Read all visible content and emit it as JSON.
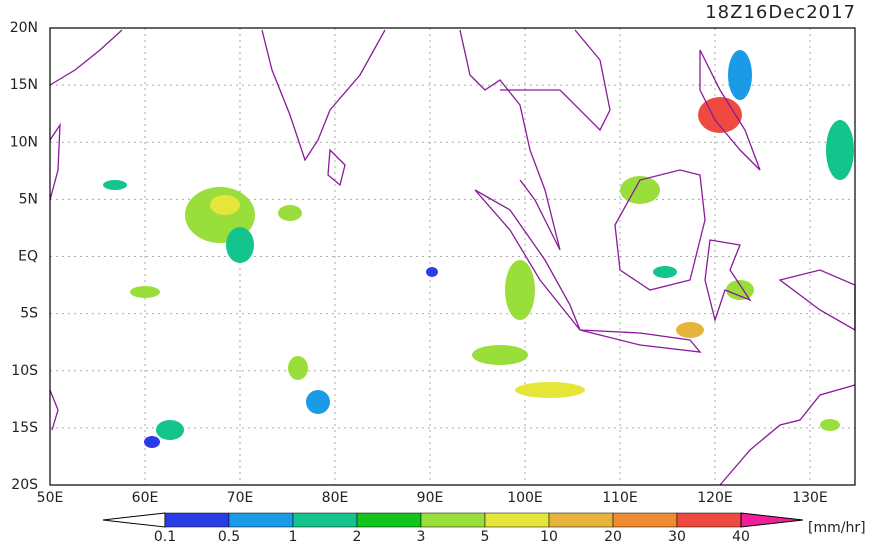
{
  "map": {
    "timestamp": "18Z16Dec2017",
    "lat_labels": [
      "20N",
      "15N",
      "10N",
      "5N",
      "EQ",
      "5S",
      "10S",
      "15S",
      "20S"
    ],
    "lon_labels": [
      "50E",
      "60E",
      "70E",
      "80E",
      "90E",
      "100E",
      "110E",
      "120E",
      "130E"
    ],
    "colorbar": {
      "labels": [
        "0.1",
        "0.5",
        "1",
        "2",
        "3",
        "5",
        "10",
        "20",
        "30",
        "40"
      ],
      "colors": [
        "#ffffff",
        "#2a3ce6",
        "#1a9be8",
        "#13c48c",
        "#12c41c",
        "#9ade3c",
        "#e6e63a",
        "#e6b43a",
        "#ee8a30",
        "#f04a40",
        "#f0209a"
      ],
      "unit": "[mm/hr]"
    }
  }
}
